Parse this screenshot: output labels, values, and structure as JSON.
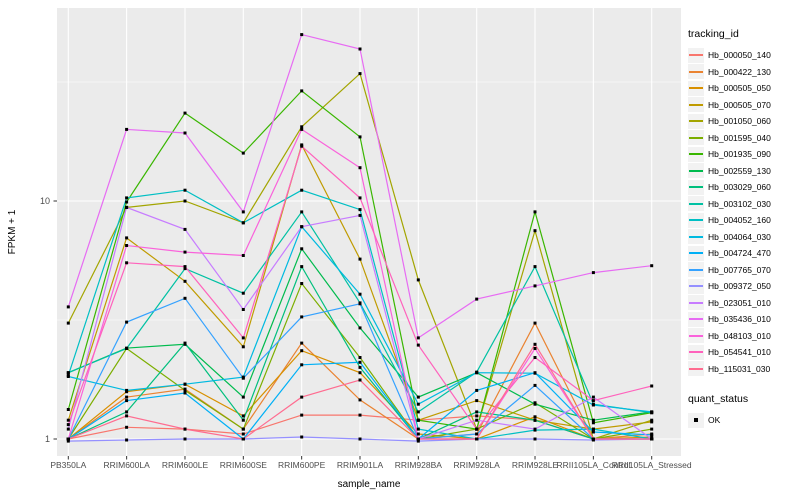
{
  "figure": {
    "background": "#FFFFFF",
    "panel_background": "#EBEBEB",
    "gridline_color": "#FFFFFF",
    "tick_color": "#333333",
    "tick_label_color": "#4D4D4D",
    "point_color": "#000000"
  },
  "axes": {
    "x_title": "sample_name",
    "y_title": "FPKM + 1",
    "y_tick_labels": [
      "1",
      "10"
    ]
  },
  "legend": {
    "tracking_title": "tracking_id",
    "quant_title": "quant_status",
    "quant_items": [
      {
        "label": "OK",
        "shape": "filled-square",
        "color": "#000000"
      }
    ]
  },
  "chart_data": {
    "type": "line",
    "title": "",
    "xlabel": "sample_name",
    "ylabel": "FPKM + 1",
    "y_scale": "log10",
    "ylim": [
      0.85,
      65
    ],
    "y_major_ticks": [
      1,
      10
    ],
    "y_minor_gridlines": [
      3.162,
      31.62
    ],
    "grid": true,
    "legend_position": "right",
    "point_marker": "black filled square (quant_status = OK) at every data point",
    "categories": [
      "PB350LA",
      "RRIM600LA",
      "RRIM600LE",
      "RRIM600SE",
      "RRIM600PE",
      "RRIM901LA",
      "RRIM928BA",
      "RRIM928LA",
      "RRIM928LE",
      "RRII105LA_Control",
      "RRII105LA_Stressed"
    ],
    "series": [
      {
        "name": "Hb_000050_140",
        "color": "#F8766D",
        "values": [
          1.0,
          1.12,
          1.1,
          1.05,
          1.26,
          1.26,
          1.2,
          1.25,
          1.2,
          1.0,
          1.0
        ]
      },
      {
        "name": "Hb_000422_130",
        "color": "#EA8331",
        "values": [
          1.0,
          1.5,
          1.62,
          1.1,
          2.53,
          1.46,
          1.0,
          1.05,
          3.07,
          1.0,
          1.05
        ]
      },
      {
        "name": "Hb_000505_050",
        "color": "#D89000",
        "values": [
          1.0,
          1.58,
          1.7,
          1.25,
          2.35,
          1.9,
          1.05,
          1.0,
          1.24,
          1.0,
          1.02
        ]
      },
      {
        "name": "Hb_000505_070",
        "color": "#C09B00",
        "values": [
          1.2,
          7.0,
          4.6,
          2.44,
          17.2,
          5.7,
          1.2,
          1.45,
          1.2,
          1.1,
          1.18
        ]
      },
      {
        "name": "Hb_001050_060",
        "color": "#A3A500",
        "values": [
          3.07,
          9.4,
          10.0,
          8.1,
          20.5,
          34.3,
          4.66,
          1.1,
          7.5,
          1.0,
          1.2
        ]
      },
      {
        "name": "Hb_001595_040",
        "color": "#7CAE00",
        "values": [
          1.0,
          2.4,
          1.6,
          1.1,
          4.5,
          2.2,
          1.0,
          1.1,
          1.42,
          1.0,
          1.1
        ]
      },
      {
        "name": "Hb_001935_090",
        "color": "#39B600",
        "values": [
          1.33,
          9.9,
          23.4,
          15.9,
          29.0,
          18.6,
          1.2,
          1.1,
          9.0,
          1.17,
          1.29
        ]
      },
      {
        "name": "Hb_002559_130",
        "color": "#00BB4E",
        "values": [
          1.9,
          2.41,
          2.5,
          1.5,
          6.3,
          2.93,
          1.5,
          1.9,
          1.4,
          1.2,
          1.3
        ]
      },
      {
        "name": "Hb_003029_060",
        "color": "#00BF7D",
        "values": [
          1.0,
          1.3,
          2.53,
          1.2,
          5.3,
          2.0,
          1.0,
          1.3,
          1.2,
          1.0,
          1.0
        ]
      },
      {
        "name": "Hb_003102_030",
        "color": "#00C1A3",
        "values": [
          1.9,
          2.4,
          5.2,
          4.1,
          9.0,
          3.73,
          1.3,
          1.91,
          5.3,
          1.4,
          1.29
        ]
      },
      {
        "name": "Hb_004052_160",
        "color": "#00BFC4",
        "values": [
          1.85,
          10.3,
          11.1,
          8.1,
          11.1,
          9.2,
          1.1,
          1.0,
          1.09,
          1.1,
          1.0
        ]
      },
      {
        "name": "Hb_004064_030",
        "color": "#00BAE0",
        "values": [
          1.83,
          1.6,
          1.7,
          1.82,
          7.8,
          4.06,
          1.4,
          1.9,
          1.89,
          1.39,
          1.3
        ]
      },
      {
        "name": "Hb_004724_470",
        "color": "#00B0F6",
        "values": [
          1.0,
          1.45,
          1.56,
          1.0,
          2.05,
          2.1,
          1.0,
          1.6,
          1.9,
          1.07,
          1.04
        ]
      },
      {
        "name": "Hb_007765_070",
        "color": "#35A2FF",
        "values": [
          1.0,
          3.1,
          3.9,
          1.8,
          3.26,
          3.7,
          1.0,
          1.05,
          1.68,
          1.0,
          1.0
        ]
      },
      {
        "name": "Hb_009372_050",
        "color": "#9590FF",
        "values": [
          0.98,
          0.99,
          1.0,
          1.0,
          1.02,
          1.0,
          0.98,
          1.0,
          1.0,
          0.99,
          1.0
        ]
      },
      {
        "name": "Hb_023051_010",
        "color": "#C77CFF",
        "values": [
          1.1,
          9.4,
          7.6,
          3.5,
          7.8,
          8.7,
          1.0,
          1.2,
          1.1,
          1.5,
          1.0
        ]
      },
      {
        "name": "Hb_035436_010",
        "color": "#E76BF3",
        "values": [
          3.59,
          20.0,
          19.3,
          9.0,
          50.0,
          43.5,
          2.66,
          3.87,
          4.4,
          5.0,
          5.35
        ]
      },
      {
        "name": "Hb_048103_010",
        "color": "#FA62DB",
        "values": [
          1.0,
          6.5,
          6.1,
          5.9,
          20.0,
          13.8,
          1.0,
          1.0,
          2.4,
          1.0,
          1.0
        ]
      },
      {
        "name": "Hb_054541_010",
        "color": "#FF62BC",
        "values": [
          1.15,
          5.5,
          5.3,
          2.66,
          17.0,
          10.3,
          2.48,
          1.1,
          2.2,
          1.45,
          1.67
        ]
      },
      {
        "name": "Hb_115031_030",
        "color": "#FF6C90",
        "values": [
          1.0,
          1.25,
          1.1,
          1.0,
          1.5,
          1.77,
          1.0,
          1.0,
          2.5,
          1.0,
          1.0
        ]
      }
    ]
  }
}
